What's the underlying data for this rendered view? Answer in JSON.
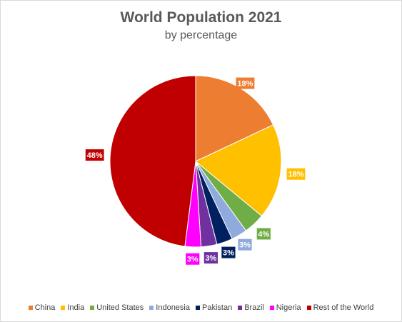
{
  "chart_data": {
    "type": "pie",
    "title": "World Population 2021",
    "subtitle": "by percentage",
    "legend_position": "bottom",
    "categories": [
      "China",
      "India",
      "United States",
      "Indonesia",
      "Pakistan",
      "Brazil",
      "Nigeria",
      "Rest of the World"
    ],
    "values": [
      18,
      18,
      4,
      3,
      3,
      3,
      3,
      48
    ],
    "labels": [
      "18%",
      "18%",
      "4%",
      "3%",
      "3%",
      "3%",
      "3%",
      "48%"
    ],
    "colors": [
      "#ED7D31",
      "#FFC000",
      "#70AD47",
      "#8FAADC",
      "#002060",
      "#7030A0",
      "#FF00FF",
      "#C00000"
    ]
  }
}
